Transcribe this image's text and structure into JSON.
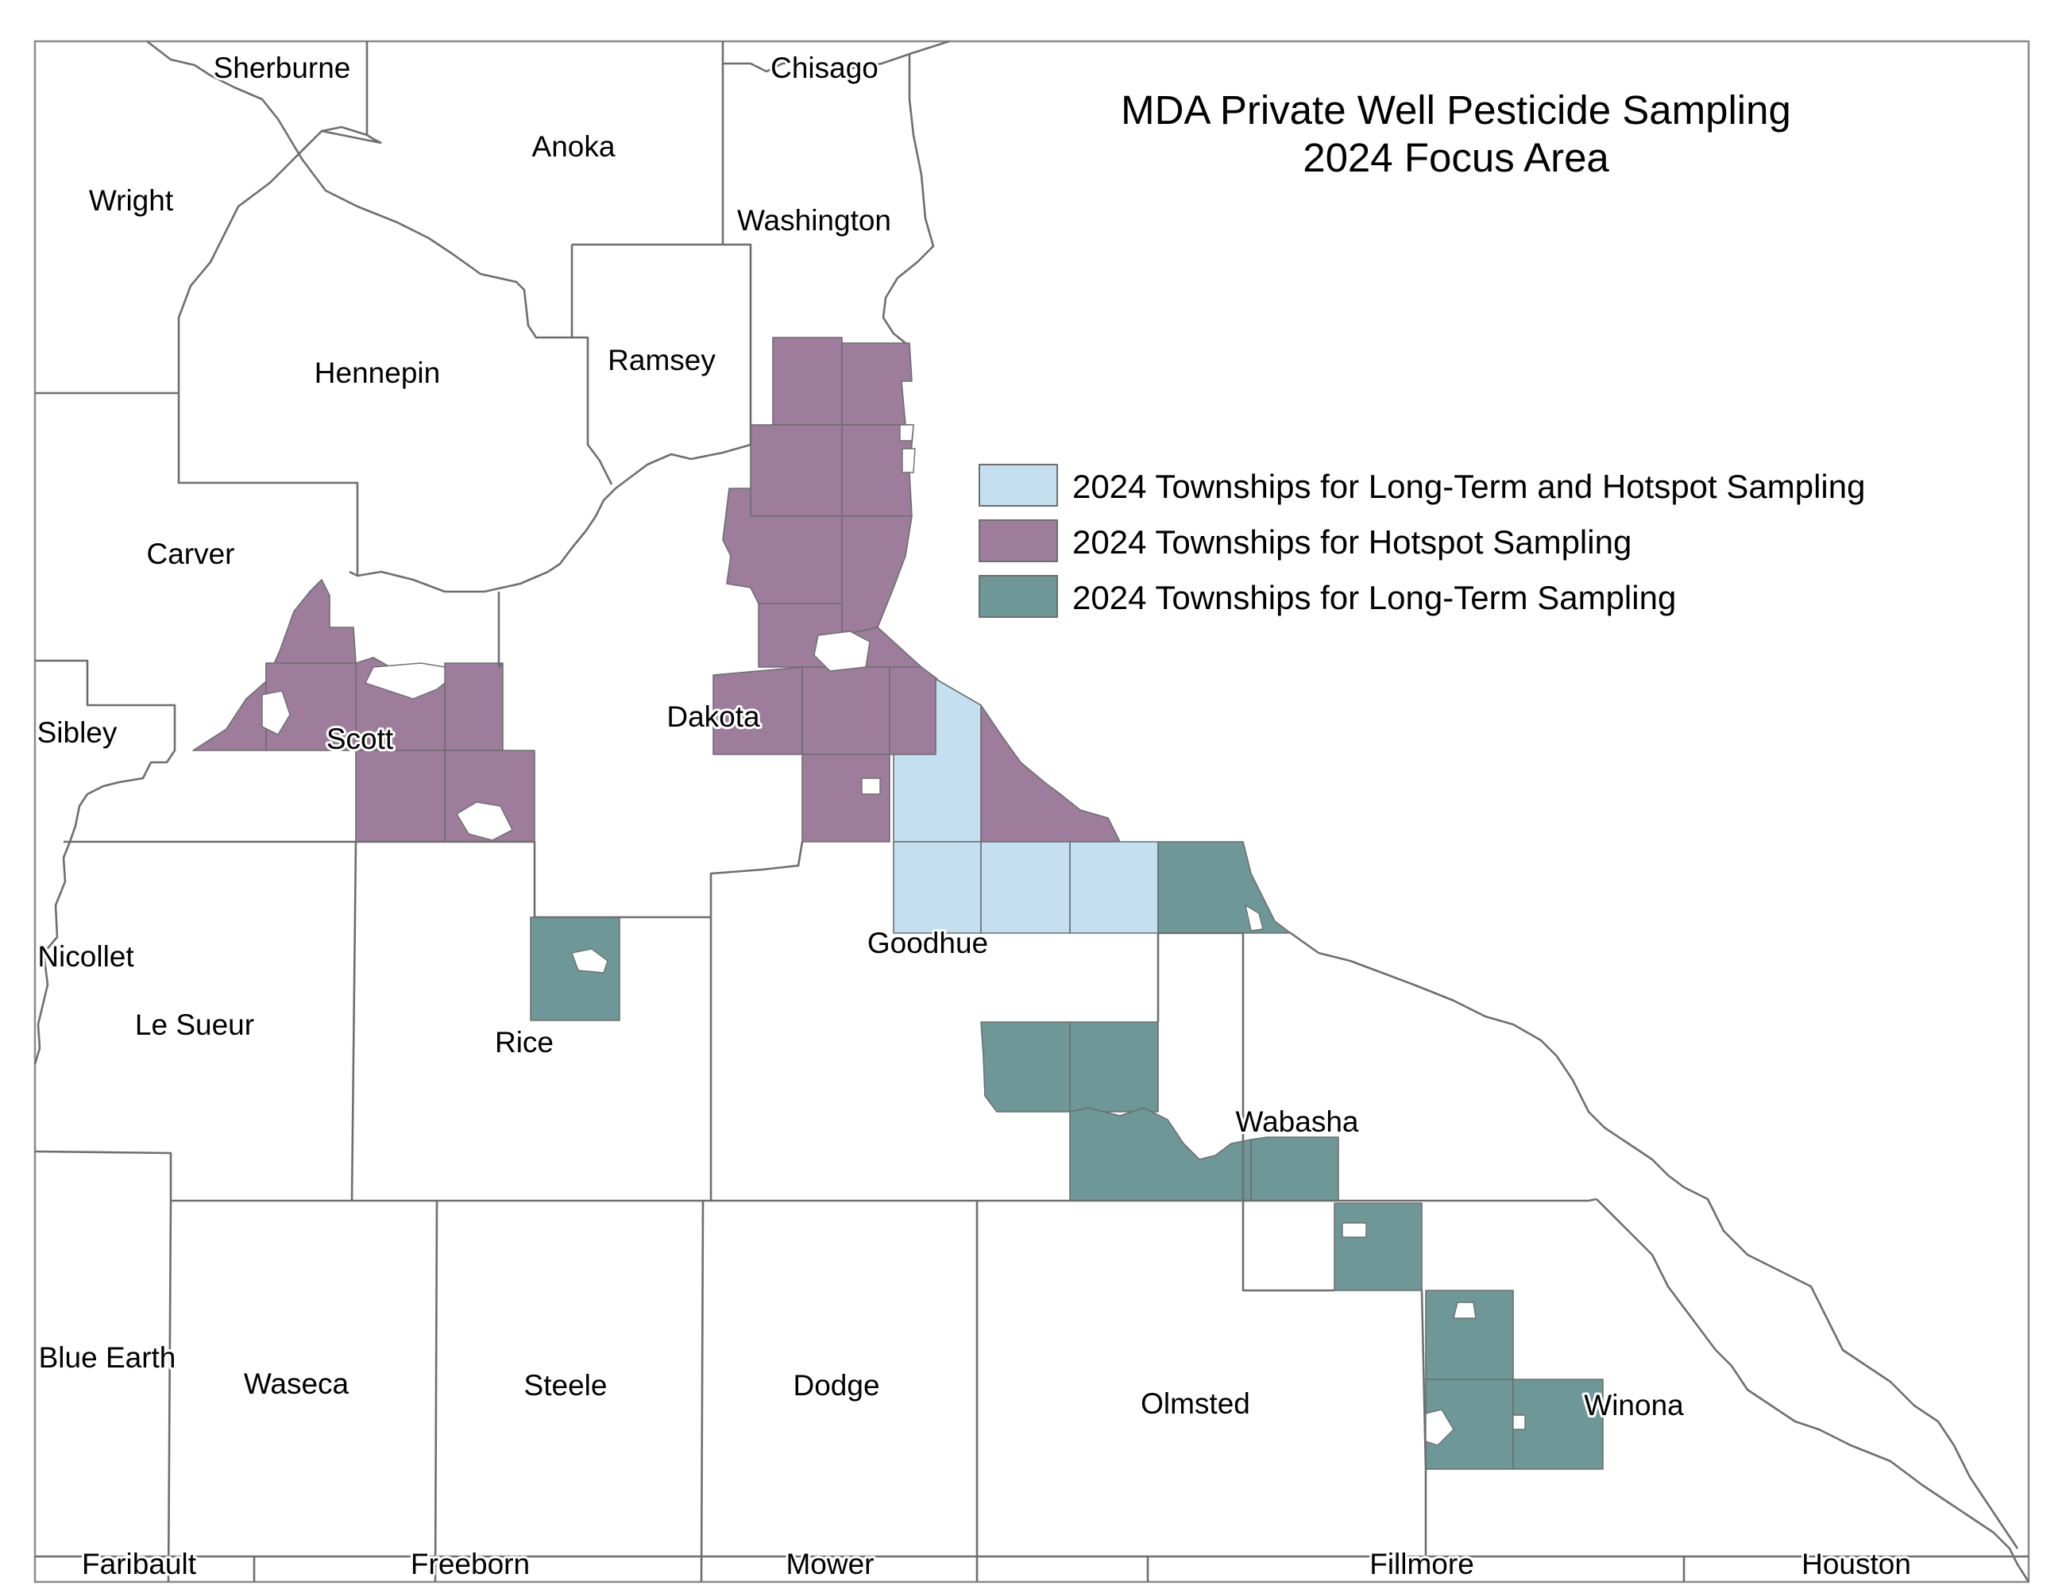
{
  "map": {
    "title_lines": [
      "MDA Private Well Pesticide Sampling",
      "2024 Focus Area"
    ],
    "legend": [
      {
        "id": "long_term_and_hotspot",
        "label": "2024 Townships for Long-Term and Hotspot Sampling",
        "color": "#c3dff0"
      },
      {
        "id": "hotspot",
        "label": "2024 Townships for Hotspot Sampling",
        "color": "#9d7c9c"
      },
      {
        "id": "long_term",
        "label": "2024 Townships for Long-Term Sampling",
        "color": "#6e9898"
      }
    ],
    "counties": {
      "sherburne": "Sherburne",
      "chisago": "Chisago",
      "anoka": "Anoka",
      "wright": "Wright",
      "washington": "Washington",
      "ramsey": "Ramsey",
      "hennepin": "Hennepin",
      "carver": "Carver",
      "dakota": "Dakota",
      "sibley": "Sibley",
      "scott": "Scott",
      "nicollet": "Nicollet",
      "goodhue": "Goodhue",
      "le_sueur": "Le Sueur",
      "rice": "Rice",
      "wabasha": "Wabasha",
      "blue_earth": "Blue Earth",
      "waseca": "Waseca",
      "steele": "Steele",
      "dodge": "Dodge",
      "olmsted": "Olmsted",
      "winona": "Winona",
      "faribault": "Faribault",
      "freeborn": "Freeborn",
      "mower": "Mower",
      "fillmore": "Fillmore",
      "houston": "Houston"
    }
  }
}
